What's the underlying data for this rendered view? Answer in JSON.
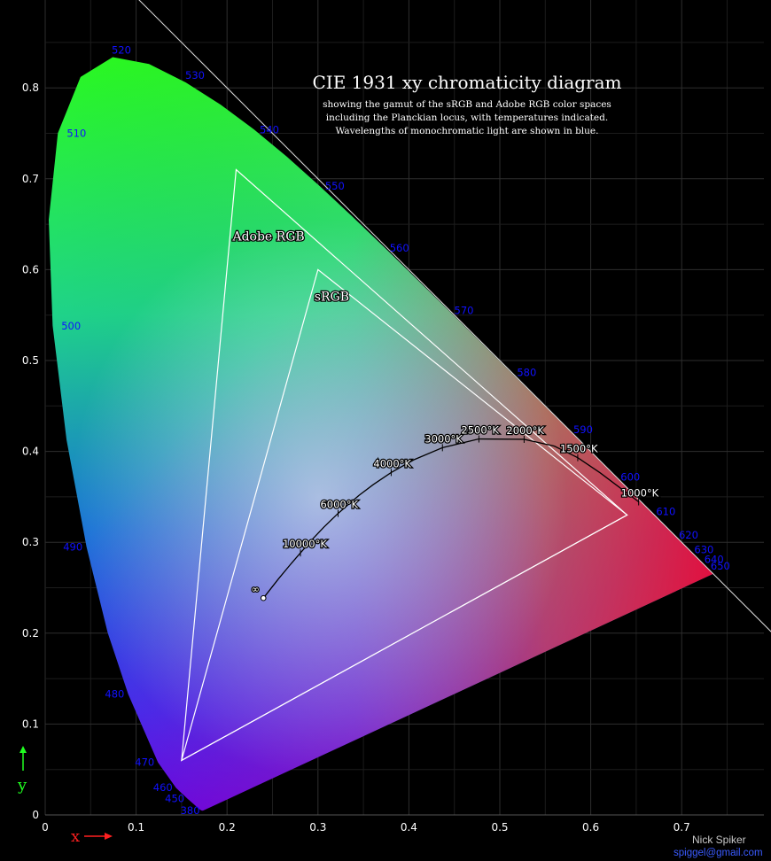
{
  "title": "CIE 1931 xy chromaticity diagram",
  "subtitle_lines": [
    "showing the gamut of the sRGB and Adobe RGB color spaces",
    "including the Planckian locus, with temperatures indicated.",
    "Wavelengths of monochromatic light are shown in blue."
  ],
  "axes": {
    "x_ticks": [
      "0",
      "0.1",
      "0.2",
      "0.3",
      "0.4",
      "0.5",
      "0.6",
      "0.7"
    ],
    "y_ticks": [
      "0",
      "0.1",
      "0.2",
      "0.3",
      "0.4",
      "0.5",
      "0.6",
      "0.7",
      "0.8"
    ],
    "x_label": "x",
    "y_label": "y",
    "xlim": [
      0,
      0.8
    ],
    "ylim": [
      0,
      0.85
    ]
  },
  "credit": {
    "name": "Nick Spiker",
    "email": "spiggel@gmail.com"
  },
  "colors": {
    "wavelength_label": "#1111ff",
    "background": "#000000",
    "grid": "#2a2a2a",
    "x_arrow": "#ff2020",
    "y_arrow": "#20ff20"
  },
  "chart_data": {
    "type": "scatter",
    "spectral_locus_labels": [
      {
        "nm": "380",
        "x": 0.174,
        "y": 0.005
      },
      {
        "nm": "450",
        "x": 0.157,
        "y": 0.018
      },
      {
        "nm": "460",
        "x": 0.144,
        "y": 0.03
      },
      {
        "nm": "470",
        "x": 0.124,
        "y": 0.058
      },
      {
        "nm": "480",
        "x": 0.091,
        "y": 0.133
      },
      {
        "nm": "490",
        "x": 0.045,
        "y": 0.295
      },
      {
        "nm": "500",
        "x": 0.008,
        "y": 0.538
      },
      {
        "nm": "510",
        "x": 0.014,
        "y": 0.75
      },
      {
        "nm": "520",
        "x": 0.074,
        "y": 0.834
      },
      {
        "nm": "530",
        "x": 0.155,
        "y": 0.806
      },
      {
        "nm": "540",
        "x": 0.23,
        "y": 0.754
      },
      {
        "nm": "550",
        "x": 0.302,
        "y": 0.692
      },
      {
        "nm": "560",
        "x": 0.373,
        "y": 0.624
      },
      {
        "nm": "570",
        "x": 0.444,
        "y": 0.555
      },
      {
        "nm": "580",
        "x": 0.513,
        "y": 0.487
      },
      {
        "nm": "590",
        "x": 0.575,
        "y": 0.424
      },
      {
        "nm": "600",
        "x": 0.627,
        "y": 0.372
      },
      {
        "nm": "610",
        "x": 0.666,
        "y": 0.334
      },
      {
        "nm": "620",
        "x": 0.691,
        "y": 0.308
      },
      {
        "nm": "630",
        "x": 0.708,
        "y": 0.292
      },
      {
        "nm": "640",
        "x": 0.719,
        "y": 0.281
      },
      {
        "nm": "650",
        "x": 0.726,
        "y": 0.274
      }
    ],
    "spectral_locus": [
      [
        0.1741,
        0.005
      ],
      [
        0.1733,
        0.0048
      ],
      [
        0.1726,
        0.0048
      ],
      [
        0.1714,
        0.0051
      ],
      [
        0.1689,
        0.0069
      ],
      [
        0.1644,
        0.0109
      ],
      [
        0.1566,
        0.0177
      ],
      [
        0.144,
        0.0297
      ],
      [
        0.1241,
        0.0578
      ],
      [
        0.0913,
        0.1327
      ],
      [
        0.0687,
        0.2007
      ],
      [
        0.0454,
        0.295
      ],
      [
        0.0235,
        0.4127
      ],
      [
        0.0082,
        0.5384
      ],
      [
        0.0039,
        0.6548
      ],
      [
        0.0139,
        0.7502
      ],
      [
        0.0389,
        0.812
      ],
      [
        0.0743,
        0.8338
      ],
      [
        0.1142,
        0.8262
      ],
      [
        0.1547,
        0.8059
      ],
      [
        0.1929,
        0.7816
      ],
      [
        0.2296,
        0.7543
      ],
      [
        0.2658,
        0.7243
      ],
      [
        0.3016,
        0.6923
      ],
      [
        0.3373,
        0.6589
      ],
      [
        0.3731,
        0.6245
      ],
      [
        0.4087,
        0.5896
      ],
      [
        0.4441,
        0.5547
      ],
      [
        0.4788,
        0.5202
      ],
      [
        0.5125,
        0.4866
      ],
      [
        0.5448,
        0.4544
      ],
      [
        0.5752,
        0.4242
      ],
      [
        0.6029,
        0.3965
      ],
      [
        0.627,
        0.3725
      ],
      [
        0.6482,
        0.3514
      ],
      [
        0.6658,
        0.334
      ],
      [
        0.6801,
        0.3197
      ],
      [
        0.6915,
        0.3083
      ],
      [
        0.7006,
        0.2993
      ],
      [
        0.7079,
        0.292
      ],
      [
        0.714,
        0.2859
      ],
      [
        0.719,
        0.2809
      ],
      [
        0.723,
        0.277
      ],
      [
        0.726,
        0.274
      ],
      [
        0.73,
        0.27
      ],
      [
        0.7347,
        0.2653
      ]
    ],
    "gamuts": [
      {
        "name": "Adobe RGB",
        "points": [
          [
            0.64,
            0.33
          ],
          [
            0.21,
            0.71
          ],
          [
            0.15,
            0.06
          ]
        ]
      },
      {
        "name": "sRGB",
        "points": [
          [
            0.64,
            0.33
          ],
          [
            0.3,
            0.6
          ],
          [
            0.15,
            0.06
          ]
        ]
      }
    ],
    "planckian_locus": [
      [
        0.6527,
        0.3445
      ],
      [
        0.6102,
        0.3765
      ],
      [
        0.5857,
        0.3931
      ],
      [
        0.56,
        0.4058
      ],
      [
        0.5267,
        0.4133
      ],
      [
        0.477,
        0.4137
      ],
      [
        0.4369,
        0.4041
      ],
      [
        0.4053,
        0.3907
      ],
      [
        0.3805,
        0.3768
      ],
      [
        0.3608,
        0.3635
      ],
      [
        0.3451,
        0.3516
      ],
      [
        0.3221,
        0.3318
      ],
      [
        0.3064,
        0.3166
      ],
      [
        0.2952,
        0.3048
      ],
      [
        0.2807,
        0.2883
      ],
      [
        0.2693,
        0.2751
      ],
      [
        0.2565,
        0.2597
      ],
      [
        0.24,
        0.2386
      ]
    ],
    "temperature_labels": [
      {
        "label": "1000°K",
        "x": 0.6527,
        "y": 0.3445
      },
      {
        "label": "1500°K",
        "x": 0.5857,
        "y": 0.3931
      },
      {
        "label": "2000°K",
        "x": 0.5267,
        "y": 0.4133
      },
      {
        "label": "2500°K",
        "x": 0.477,
        "y": 0.4137
      },
      {
        "label": "3000°K",
        "x": 0.4369,
        "y": 0.4041
      },
      {
        "label": "4000°K",
        "x": 0.3805,
        "y": 0.3768
      },
      {
        "label": "6000°K",
        "x": 0.3221,
        "y": 0.3318
      },
      {
        "label": "10000°K",
        "x": 0.2807,
        "y": 0.2883
      },
      {
        "label": "∞",
        "x": 0.24,
        "y": 0.2386
      }
    ]
  }
}
